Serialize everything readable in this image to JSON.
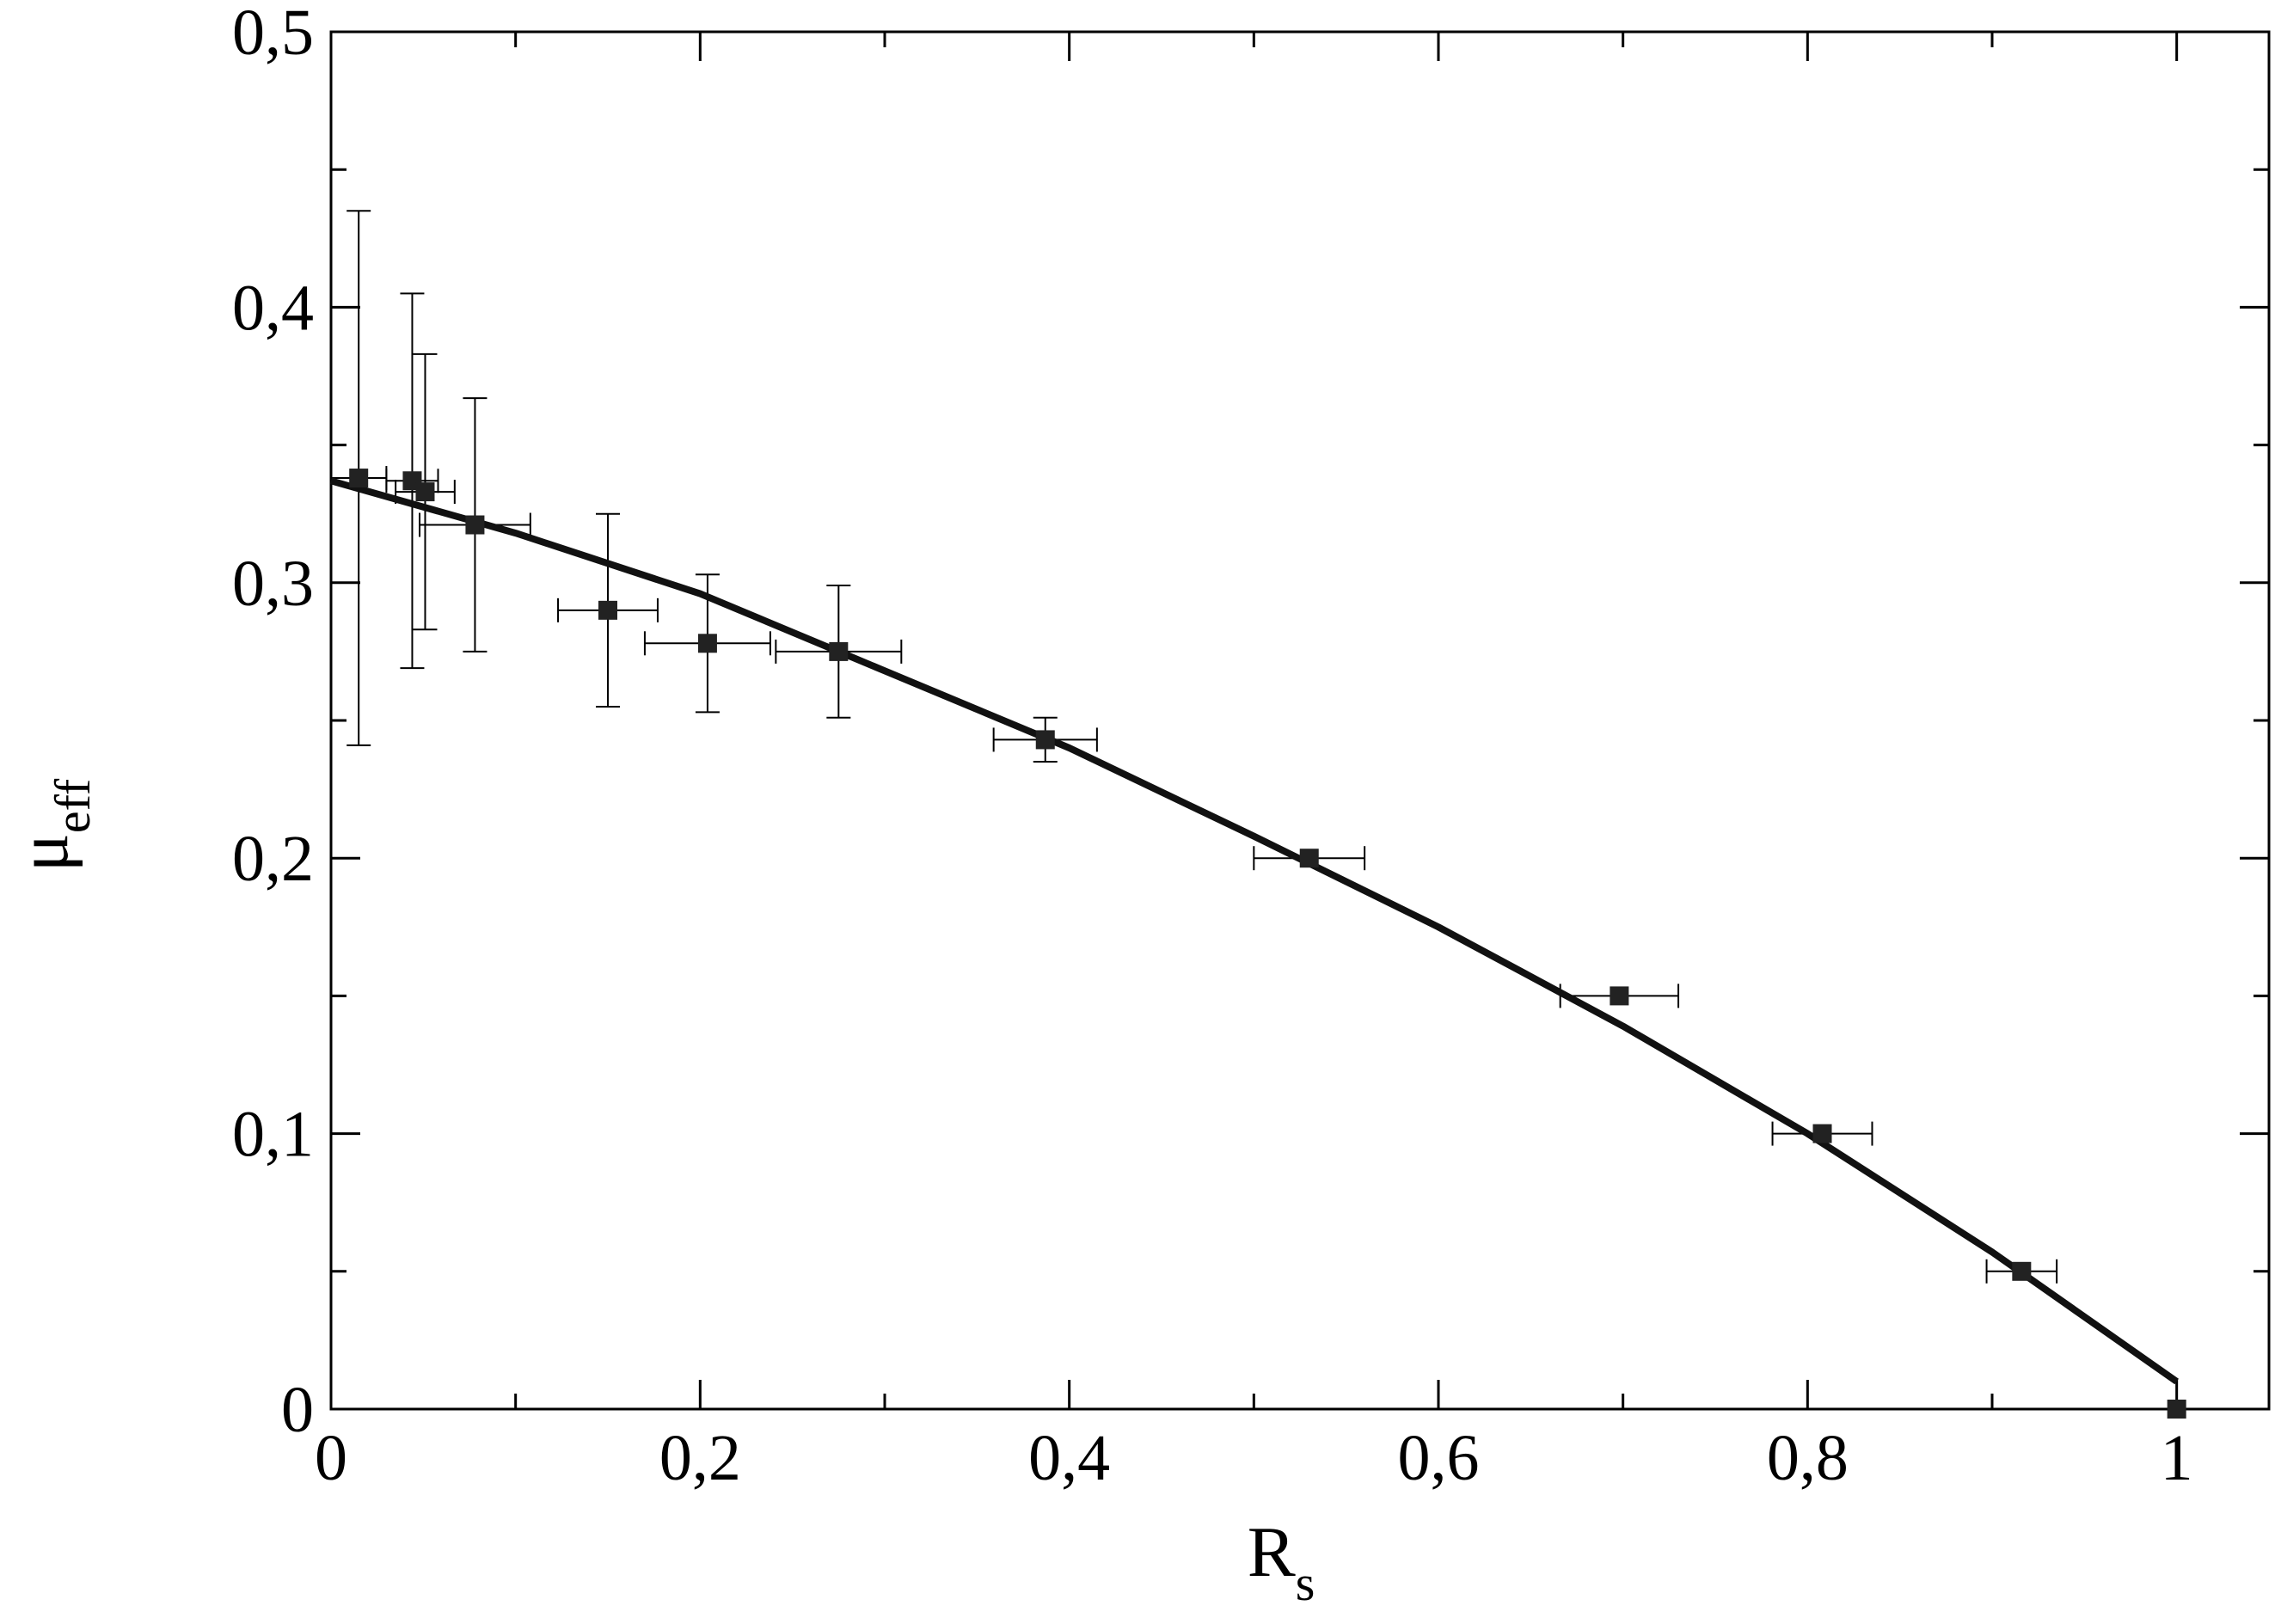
{
  "chart_data": {
    "type": "scatter",
    "xlabel": "R",
    "xlabel_sub": "s",
    "ylabel": "μ",
    "ylabel_sub": "eff",
    "xlim": [
      0,
      1.05
    ],
    "ylim": [
      0,
      0.5
    ],
    "x_ticks": [
      0,
      0.2,
      0.4,
      0.6,
      0.8,
      1
    ],
    "x_tick_labels": [
      "0",
      "0,2",
      "0,4",
      "0,6",
      "0,8",
      "1"
    ],
    "y_ticks": [
      0,
      0.1,
      0.2,
      0.3,
      0.4,
      0.5
    ],
    "y_tick_labels": [
      "0",
      "0,1",
      "0,2",
      "0,3",
      "0,4",
      "0,5"
    ],
    "grid": false,
    "legend": "none",
    "colors": {
      "marker": "#222222",
      "fit": "#111111",
      "axis": "#000000"
    },
    "series": [
      {
        "type": "scatter",
        "marker": "square",
        "points": [
          {
            "x": 0.015,
            "y": 0.338,
            "x_err": 0.015,
            "y_err": 0.097
          },
          {
            "x": 0.044,
            "y": 0.337,
            "x_err": 0.014,
            "y_err": 0.068
          },
          {
            "x": 0.051,
            "y": 0.333,
            "x_err": 0.016,
            "y_err": 0.05
          },
          {
            "x": 0.078,
            "y": 0.321,
            "x_err": 0.03,
            "y_err": 0.046
          },
          {
            "x": 0.15,
            "y": 0.29,
            "x_err": 0.027,
            "y_err": 0.035
          },
          {
            "x": 0.204,
            "y": 0.278,
            "x_err": 0.034,
            "y_err": 0.025
          },
          {
            "x": 0.275,
            "y": 0.275,
            "x_err": 0.034,
            "y_err": 0.024
          },
          {
            "x": 0.387,
            "y": 0.243,
            "x_err": 0.028,
            "y_err": 0.008
          },
          {
            "x": 0.53,
            "y": 0.2,
            "x_err": 0.03,
            "y_err": 0
          },
          {
            "x": 0.698,
            "y": 0.15,
            "x_err": 0.032,
            "y_err": 0
          },
          {
            "x": 0.808,
            "y": 0.1,
            "x_err": 0.027,
            "y_err": 0
          },
          {
            "x": 0.916,
            "y": 0.05,
            "x_err": 0.019,
            "y_err": 0
          },
          {
            "x": 1.0,
            "y": 0.0,
            "x_err": 0,
            "y_err": 0
          }
        ]
      },
      {
        "type": "line",
        "x": [
          0,
          0.1,
          0.2,
          0.3,
          0.4,
          0.5,
          0.6,
          0.7,
          0.8,
          0.9,
          1.0
        ],
        "y": [
          0.337,
          0.318,
          0.296,
          0.268,
          0.24,
          0.208,
          0.175,
          0.139,
          0.1,
          0.057,
          0.01
        ]
      }
    ]
  }
}
